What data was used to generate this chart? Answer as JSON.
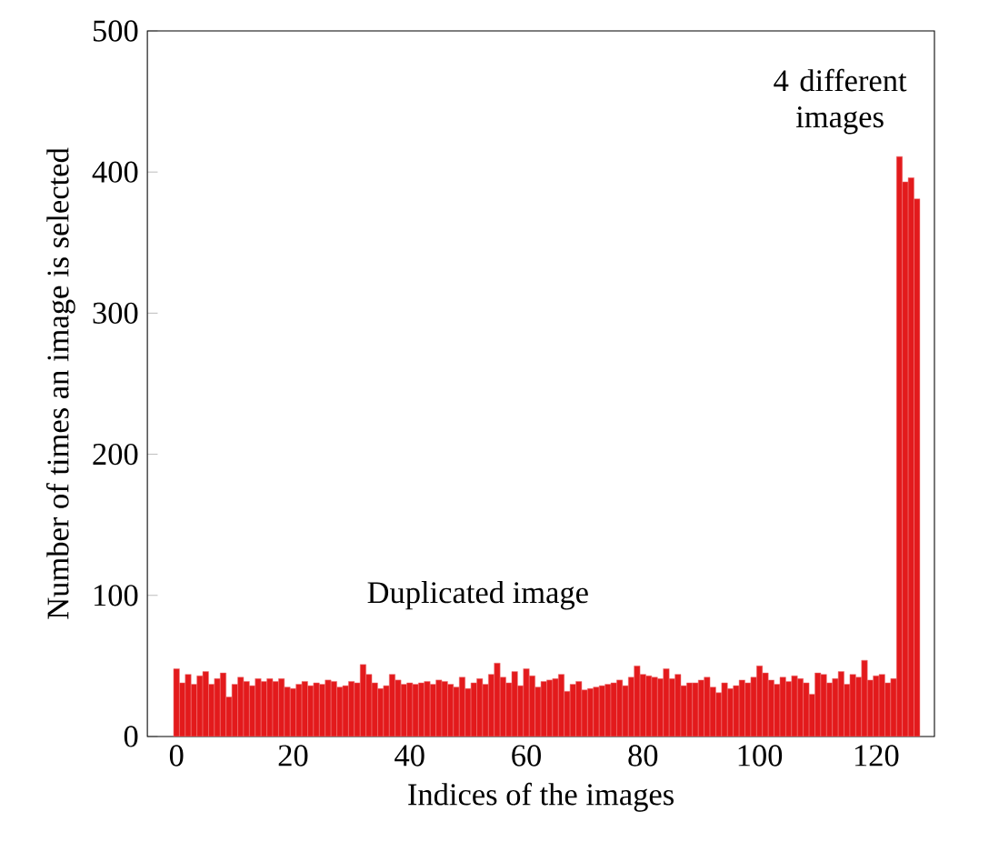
{
  "chart_data": {
    "type": "bar",
    "xlabel": "Indices of the images",
    "ylabel": "Number of times an image is selected",
    "annotations": [
      "Duplicated image",
      "4 different images"
    ],
    "x": [
      0,
      1,
      2,
      3,
      4,
      5,
      6,
      7,
      8,
      9,
      10,
      11,
      12,
      13,
      14,
      15,
      16,
      17,
      18,
      19,
      20,
      21,
      22,
      23,
      24,
      25,
      26,
      27,
      28,
      29,
      30,
      31,
      32,
      33,
      34,
      35,
      36,
      37,
      38,
      39,
      40,
      41,
      42,
      43,
      44,
      45,
      46,
      47,
      48,
      49,
      50,
      51,
      52,
      53,
      54,
      55,
      56,
      57,
      58,
      59,
      60,
      61,
      62,
      63,
      64,
      65,
      66,
      67,
      68,
      69,
      70,
      71,
      72,
      73,
      74,
      75,
      76,
      77,
      78,
      79,
      80,
      81,
      82,
      83,
      84,
      85,
      86,
      87,
      88,
      89,
      90,
      91,
      92,
      93,
      94,
      95,
      96,
      97,
      98,
      99,
      100,
      101,
      102,
      103,
      104,
      105,
      106,
      107,
      108,
      109,
      110,
      111,
      112,
      113,
      114,
      115,
      116,
      117,
      118,
      119,
      120,
      121,
      122,
      123,
      124,
      125,
      126,
      127
    ],
    "values": [
      48,
      38,
      44,
      37,
      43,
      46,
      37,
      41,
      45,
      28,
      37,
      42,
      39,
      36,
      41,
      39,
      41,
      39,
      41,
      35,
      34,
      37,
      39,
      36,
      38,
      37,
      40,
      39,
      35,
      36,
      39,
      38,
      51,
      44,
      38,
      34,
      36,
      44,
      40,
      37,
      38,
      37,
      38,
      39,
      37,
      40,
      39,
      37,
      35,
      42,
      34,
      38,
      41,
      37,
      44,
      52,
      42,
      38,
      46,
      36,
      48,
      43,
      35,
      39,
      40,
      41,
      44,
      32,
      37,
      39,
      33,
      34,
      35,
      36,
      37,
      38,
      40,
      36,
      42,
      50,
      44,
      43,
      42,
      41,
      48,
      41,
      44,
      36,
      38,
      38,
      40,
      42,
      35,
      31,
      38,
      34,
      36,
      40,
      38,
      42,
      50,
      45,
      40,
      37,
      42,
      39,
      43,
      41,
      38,
      30,
      45,
      44,
      38,
      41,
      46,
      37,
      44,
      42,
      54,
      40,
      43,
      44,
      38,
      41,
      411,
      393,
      396,
      381
    ],
    "color": "#e31a1c",
    "xlim": [
      -5,
      130
    ],
    "ylim": [
      0,
      500
    ],
    "xticks": [
      0,
      20,
      40,
      60,
      80,
      100,
      120
    ],
    "yticks": [
      0,
      100,
      200,
      300,
      400,
      500
    ]
  }
}
